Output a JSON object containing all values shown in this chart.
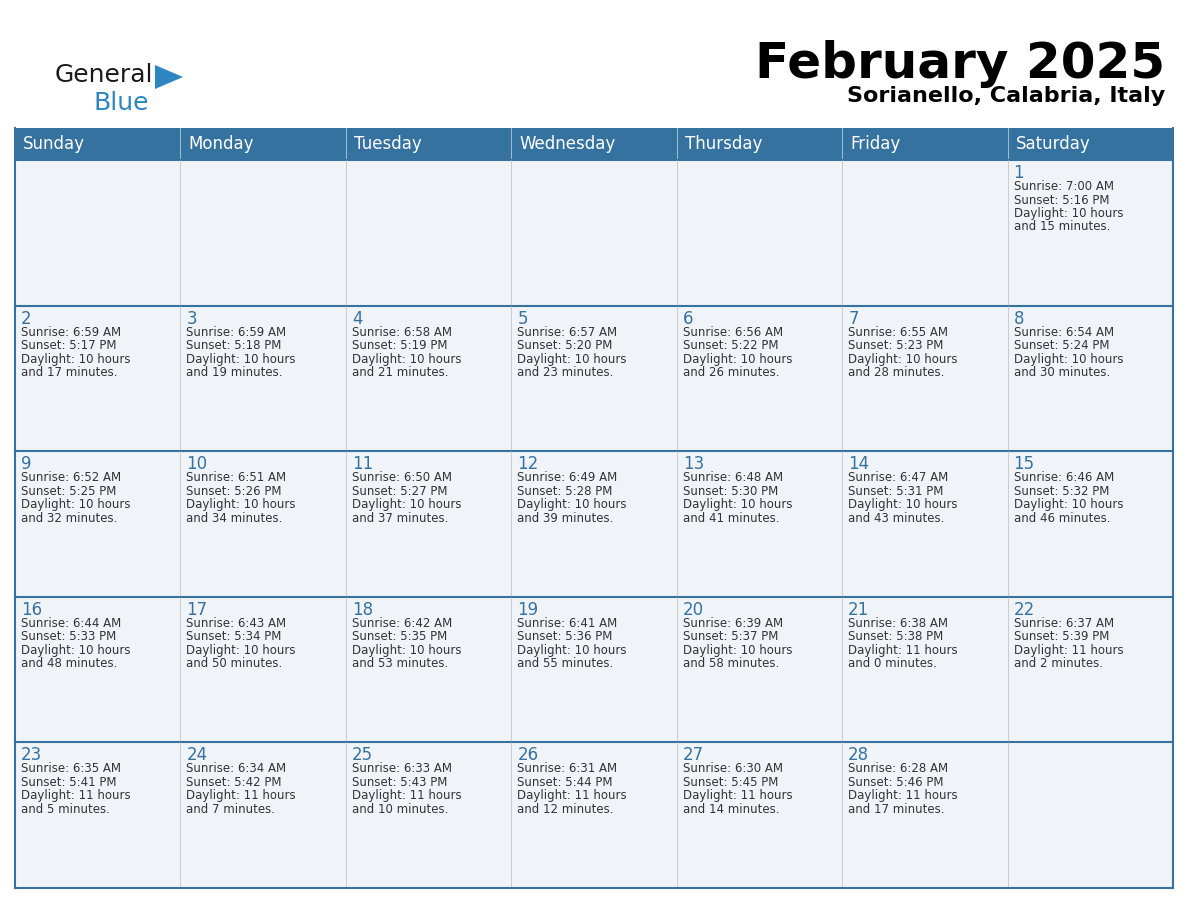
{
  "title": "February 2025",
  "subtitle": "Sorianello, Calabria, Italy",
  "header_bg_color": "#3572a0",
  "header_text_color": "#ffffff",
  "day_names": [
    "Sunday",
    "Monday",
    "Tuesday",
    "Wednesday",
    "Thursday",
    "Friday",
    "Saturday"
  ],
  "cell_bg": "#f0f4f8",
  "border_color": "#3572a0",
  "date_color": "#3572a0",
  "text_color": "#333333",
  "logo_black": "#1a1a1a",
  "logo_blue": "#2e86c1",
  "calendar": [
    [
      {
        "day": null
      },
      {
        "day": null
      },
      {
        "day": null
      },
      {
        "day": null
      },
      {
        "day": null
      },
      {
        "day": null
      },
      {
        "day": 1,
        "sunrise": "7:00 AM",
        "sunset": "5:16 PM",
        "daylight": "10 hours and 15 minutes."
      }
    ],
    [
      {
        "day": 2,
        "sunrise": "6:59 AM",
        "sunset": "5:17 PM",
        "daylight": "10 hours and 17 minutes."
      },
      {
        "day": 3,
        "sunrise": "6:59 AM",
        "sunset": "5:18 PM",
        "daylight": "10 hours and 19 minutes."
      },
      {
        "day": 4,
        "sunrise": "6:58 AM",
        "sunset": "5:19 PM",
        "daylight": "10 hours and 21 minutes."
      },
      {
        "day": 5,
        "sunrise": "6:57 AM",
        "sunset": "5:20 PM",
        "daylight": "10 hours and 23 minutes."
      },
      {
        "day": 6,
        "sunrise": "6:56 AM",
        "sunset": "5:22 PM",
        "daylight": "10 hours and 26 minutes."
      },
      {
        "day": 7,
        "sunrise": "6:55 AM",
        "sunset": "5:23 PM",
        "daylight": "10 hours and 28 minutes."
      },
      {
        "day": 8,
        "sunrise": "6:54 AM",
        "sunset": "5:24 PM",
        "daylight": "10 hours and 30 minutes."
      }
    ],
    [
      {
        "day": 9,
        "sunrise": "6:52 AM",
        "sunset": "5:25 PM",
        "daylight": "10 hours and 32 minutes."
      },
      {
        "day": 10,
        "sunrise": "6:51 AM",
        "sunset": "5:26 PM",
        "daylight": "10 hours and 34 minutes."
      },
      {
        "day": 11,
        "sunrise": "6:50 AM",
        "sunset": "5:27 PM",
        "daylight": "10 hours and 37 minutes."
      },
      {
        "day": 12,
        "sunrise": "6:49 AM",
        "sunset": "5:28 PM",
        "daylight": "10 hours and 39 minutes."
      },
      {
        "day": 13,
        "sunrise": "6:48 AM",
        "sunset": "5:30 PM",
        "daylight": "10 hours and 41 minutes."
      },
      {
        "day": 14,
        "sunrise": "6:47 AM",
        "sunset": "5:31 PM",
        "daylight": "10 hours and 43 minutes."
      },
      {
        "day": 15,
        "sunrise": "6:46 AM",
        "sunset": "5:32 PM",
        "daylight": "10 hours and 46 minutes."
      }
    ],
    [
      {
        "day": 16,
        "sunrise": "6:44 AM",
        "sunset": "5:33 PM",
        "daylight": "10 hours and 48 minutes."
      },
      {
        "day": 17,
        "sunrise": "6:43 AM",
        "sunset": "5:34 PM",
        "daylight": "10 hours and 50 minutes."
      },
      {
        "day": 18,
        "sunrise": "6:42 AM",
        "sunset": "5:35 PM",
        "daylight": "10 hours and 53 minutes."
      },
      {
        "day": 19,
        "sunrise": "6:41 AM",
        "sunset": "5:36 PM",
        "daylight": "10 hours and 55 minutes."
      },
      {
        "day": 20,
        "sunrise": "6:39 AM",
        "sunset": "5:37 PM",
        "daylight": "10 hours and 58 minutes."
      },
      {
        "day": 21,
        "sunrise": "6:38 AM",
        "sunset": "5:38 PM",
        "daylight": "11 hours and 0 minutes."
      },
      {
        "day": 22,
        "sunrise": "6:37 AM",
        "sunset": "5:39 PM",
        "daylight": "11 hours and 2 minutes."
      }
    ],
    [
      {
        "day": 23,
        "sunrise": "6:35 AM",
        "sunset": "5:41 PM",
        "daylight": "11 hours and 5 minutes."
      },
      {
        "day": 24,
        "sunrise": "6:34 AM",
        "sunset": "5:42 PM",
        "daylight": "11 hours and 7 minutes."
      },
      {
        "day": 25,
        "sunrise": "6:33 AM",
        "sunset": "5:43 PM",
        "daylight": "11 hours and 10 minutes."
      },
      {
        "day": 26,
        "sunrise": "6:31 AM",
        "sunset": "5:44 PM",
        "daylight": "11 hours and 12 minutes."
      },
      {
        "day": 27,
        "sunrise": "6:30 AM",
        "sunset": "5:45 PM",
        "daylight": "11 hours and 14 minutes."
      },
      {
        "day": 28,
        "sunrise": "6:28 AM",
        "sunset": "5:46 PM",
        "daylight": "11 hours and 17 minutes."
      },
      {
        "day": null
      }
    ]
  ]
}
